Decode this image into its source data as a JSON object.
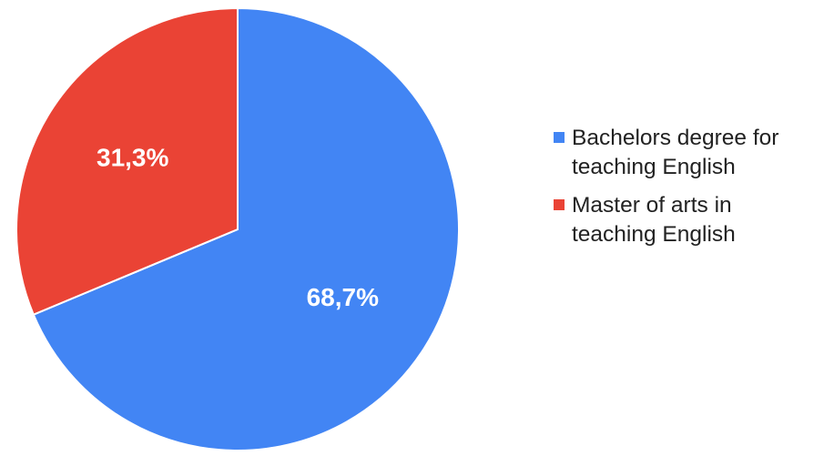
{
  "chart_data": {
    "type": "pie",
    "title": "",
    "legend_position": "right",
    "slices": [
      {
        "label": "Bachelors degree for teaching English",
        "value": 68.7,
        "display": "68,7%",
        "color": "#4285F4"
      },
      {
        "label": "Master of arts in teaching English",
        "value": 31.3,
        "display": "31,3%",
        "color": "#EA4335"
      }
    ]
  }
}
